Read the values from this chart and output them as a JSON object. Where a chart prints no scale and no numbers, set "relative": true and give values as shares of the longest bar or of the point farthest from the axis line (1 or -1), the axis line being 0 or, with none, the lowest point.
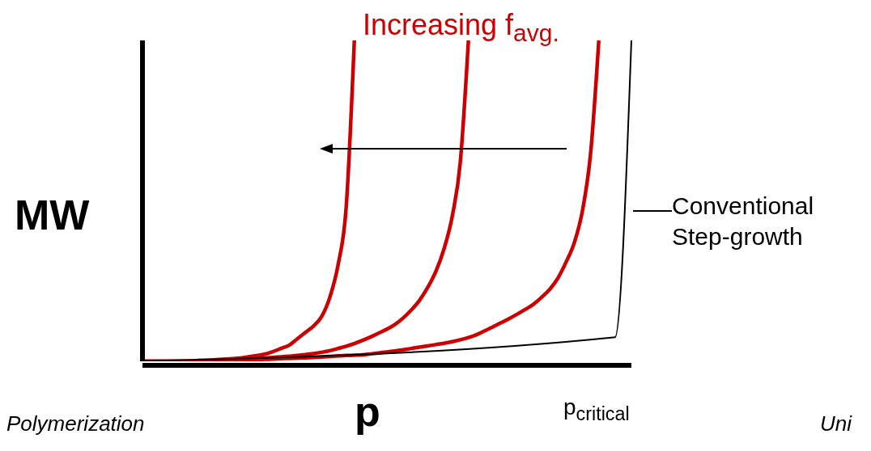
{
  "chart_data": {
    "type": "line",
    "relative": true,
    "title": "Increasing f$_{avg.}$",
    "xlabel": "p",
    "ylabel": "MW",
    "annotations": [
      "p$_{critical}$",
      "Conventional Step-growth",
      "Polymerization",
      "Uni"
    ],
    "categories": [
      null,
      null,
      null,
      null,
      null,
      null,
      null,
      null,
      null,
      null,
      null,
      null,
      null,
      null,
      null,
      null,
      null,
      null,
      null,
      null,
      null,
      null,
      null,
      null,
      null,
      null,
      null,
      null,
      null,
      null,
      null,
      null,
      null,
      null,
      null,
      null,
      null,
      null,
      null,
      null,
      null,
      null,
      null,
      null,
      null,
      null,
      null,
      null,
      null,
      null,
      null,
      null,
      null,
      null,
      null,
      null,
      null,
      null,
      null,
      null,
      null
    ],
    "legend": false,
    "grid": false,
    "marker": "none",
    "line_style": "solid",
    "series": [
      {
        "color": "#cc0000",
        "values": [
          0,
          0,
          0,
          0,
          0,
          0,
          0,
          0.003,
          0.003,
          0.005,
          0.006,
          0.008,
          0.01,
          0.014,
          0.018,
          0.022,
          0.03,
          0.04,
          0.05,
          0.07,
          0.09,
          0.11,
          0.14,
          0.2,
          0.3,
          0.48,
          1,
          null,
          null,
          null,
          null,
          null,
          null,
          null,
          null,
          null,
          null,
          null,
          null,
          null,
          null,
          null,
          null,
          null,
          null,
          null,
          null,
          null,
          null,
          null,
          null,
          null,
          null,
          null,
          null,
          null,
          null,
          null,
          null,
          null,
          null
        ]
      },
      {
        "color": "#cc0000",
        "values": [
          0,
          0,
          0,
          0,
          0,
          0,
          0,
          0.002,
          0.003,
          0.004,
          0.005,
          0.006,
          0.007,
          0.008,
          0.009,
          0.01,
          0.012,
          0.014,
          0.016,
          0.018,
          0.021,
          0.024,
          0.028,
          0.033,
          0.04,
          0.047,
          0.055,
          0.065,
          0.076,
          0.088,
          0.1,
          0.115,
          0.135,
          0.16,
          0.19,
          0.23,
          0.28,
          0.35,
          0.45,
          0.62,
          1,
          null,
          null,
          null,
          null,
          null,
          null,
          null,
          null,
          null,
          null,
          null,
          null,
          null,
          null,
          null,
          null,
          null,
          null,
          null,
          null
        ]
      },
      {
        "color": "#cc0000",
        "values": [
          0,
          0,
          0,
          0,
          0,
          0,
          0,
          0,
          0,
          0,
          0.002,
          0.003,
          0.003,
          0.004,
          0.005,
          0.006,
          0.007,
          0.008,
          0.009,
          0.01,
          0.011,
          0.012,
          0.013,
          0.015,
          0.017,
          0.018,
          0.019,
          0.02,
          0.023,
          0.026,
          0.029,
          0.032,
          0.036,
          0.04,
          0.044,
          0.048,
          0.052,
          0.056,
          0.061,
          0.067,
          0.074,
          0.083,
          0.095,
          0.107,
          0.12,
          0.133,
          0.147,
          0.162,
          0.178,
          0.2,
          0.225,
          0.26,
          0.31,
          0.37,
          0.47,
          0.65,
          1,
          null,
          null,
          null,
          null
        ]
      },
      {
        "color": "#000000",
        "values": [
          0,
          null,
          null,
          null,
          null,
          null,
          null,
          null,
          null,
          null,
          null,
          null,
          null,
          null,
          null,
          null,
          null,
          null,
          null,
          null,
          null,
          null,
          null,
          null,
          null,
          null,
          null,
          null,
          null,
          null,
          null,
          null,
          null,
          null,
          null,
          null,
          null,
          null,
          null,
          null,
          null,
          null,
          null,
          null,
          null,
          null,
          null,
          null,
          null,
          null,
          null,
          null,
          null,
          null,
          null,
          null,
          null,
          null,
          0.075,
          null,
          1
        ]
      }
    ]
  }
}
